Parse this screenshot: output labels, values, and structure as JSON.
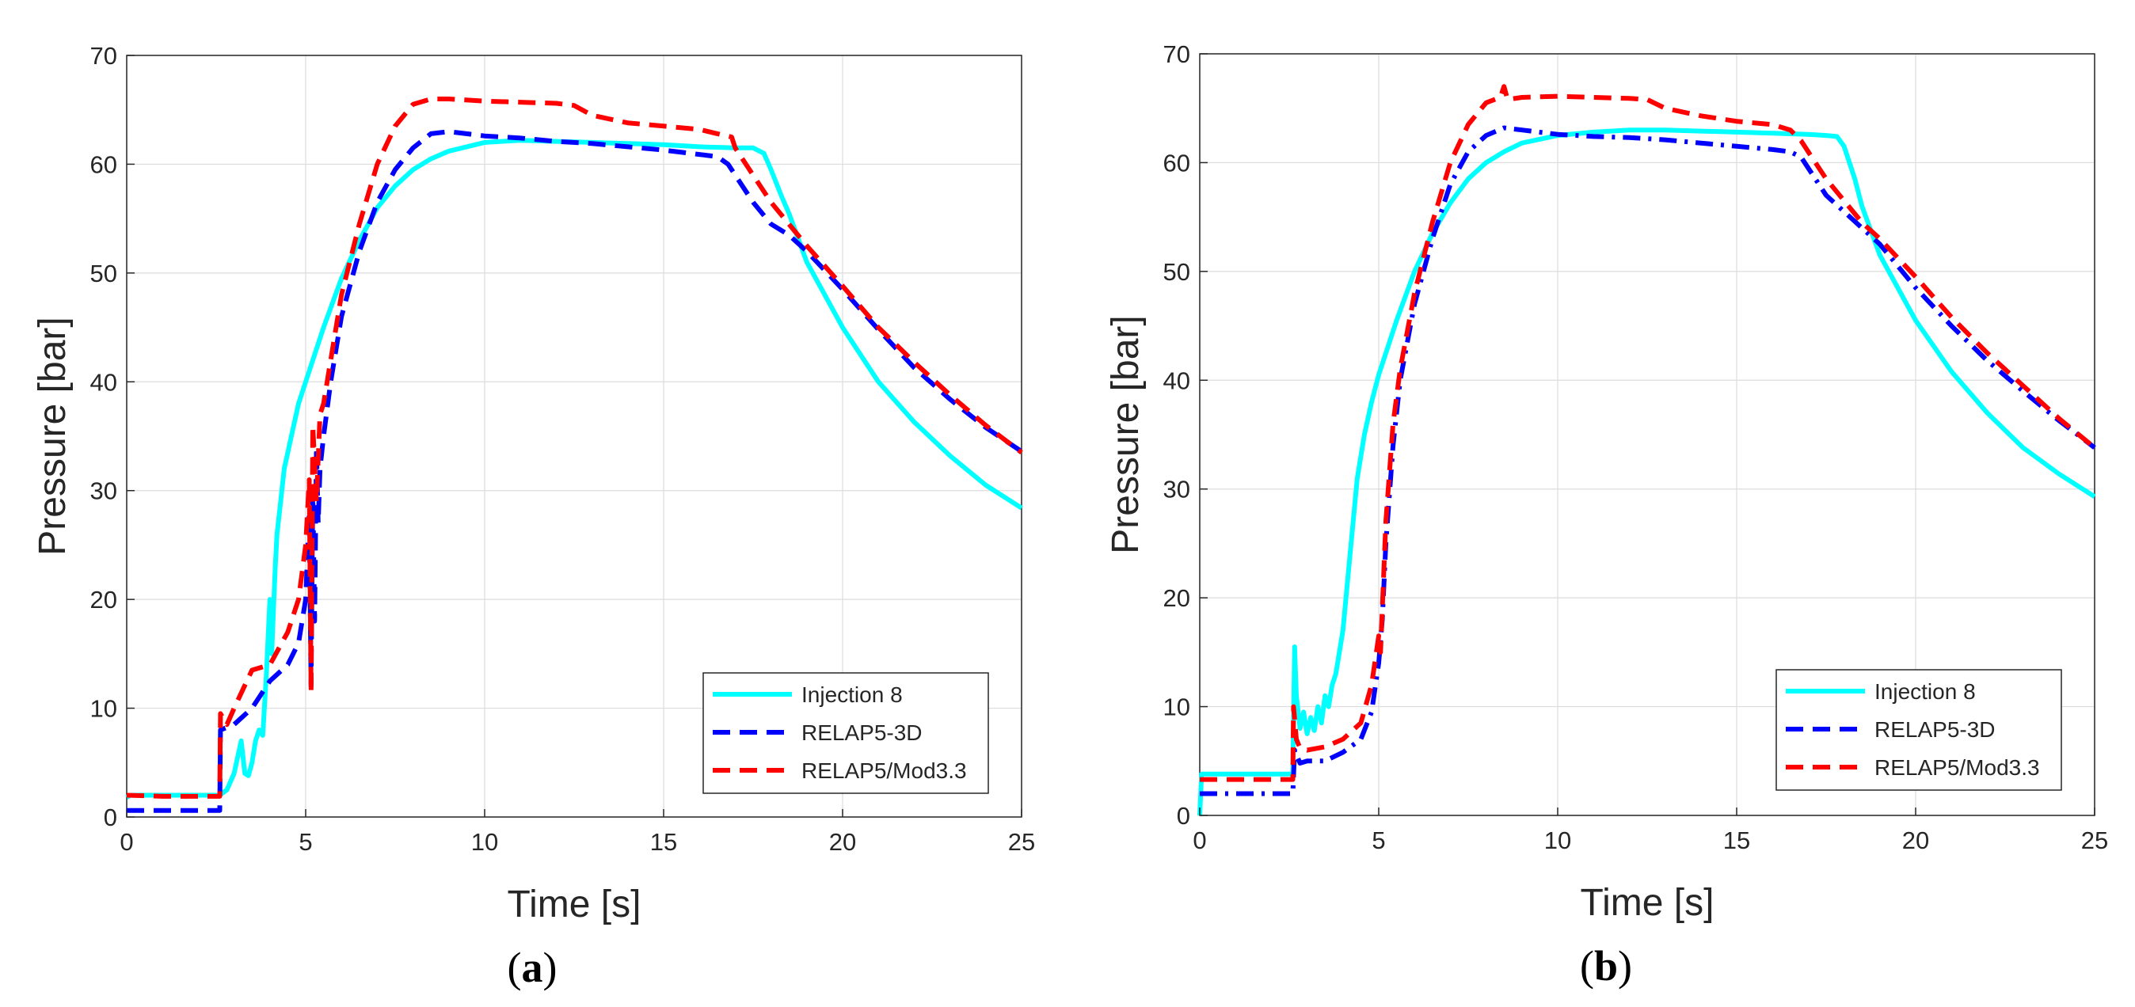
{
  "colors": {
    "injection": "#00FFFF",
    "relap5_3d": "#0000FF",
    "relap5_mod33": "#FF0000",
    "grid": "#dcdcdc",
    "axis": "#262626"
  },
  "chart_data": [
    {
      "type": "line",
      "caption": "(a)",
      "caption_open": "(",
      "caption_letter": "a",
      "caption_close": ")",
      "xlabel": "Time [s]",
      "ylabel": "Pressure [bar]",
      "xlim": [
        0,
        25
      ],
      "ylim": [
        0,
        70
      ],
      "xticks": [
        0,
        5,
        10,
        15,
        20,
        25
      ],
      "yticks": [
        0,
        10,
        20,
        30,
        40,
        50,
        60,
        70
      ],
      "grid": true,
      "legend_position": "bottom-right",
      "series": [
        {
          "name": "Injection 8",
          "style": "solid",
          "x": [
            0,
            0.1,
            0.5,
            1,
            2,
            2.6,
            2.8,
            3.0,
            3.2,
            3.3,
            3.4,
            3.5,
            3.6,
            3.7,
            3.8,
            3.9,
            4.0,
            4.05,
            4.1,
            4.15,
            4.2,
            4.3,
            4.4,
            4.6,
            4.8,
            5.0,
            5.5,
            6.0,
            6.5,
            7.0,
            7.5,
            8.0,
            8.5,
            9.0,
            10.0,
            11.0,
            12.0,
            13.0,
            14.0,
            15.0,
            16.0,
            17.0,
            17.5,
            17.8,
            18.0,
            18.3,
            18.5,
            19.0,
            19.5,
            20.0,
            21.0,
            22.0,
            23.0,
            24.0,
            25.0
          ],
          "y": [
            1.8,
            2.0,
            2.0,
            2.0,
            2.0,
            2.0,
            2.5,
            4.0,
            7.0,
            4.0,
            3.8,
            5.0,
            7.0,
            8.0,
            7.5,
            13.0,
            20.0,
            15.0,
            19.0,
            23.0,
            26.0,
            29.0,
            32.0,
            35.0,
            38.0,
            40.0,
            45.0,
            49.5,
            53.0,
            56.0,
            58.0,
            59.5,
            60.5,
            61.2,
            62.0,
            62.2,
            62.1,
            62.0,
            61.9,
            61.8,
            61.6,
            61.5,
            61.5,
            61.0,
            59.5,
            57.0,
            55.5,
            51.0,
            48.0,
            45.0,
            40.0,
            36.3,
            33.2,
            30.5,
            28.4
          ]
        },
        {
          "name": "RELAP5-3D",
          "style": "dashed",
          "x": [
            0,
            2.6,
            2.62,
            3.0,
            3.5,
            4.0,
            4.5,
            4.8,
            5.0,
            5.1,
            5.15,
            5.2,
            5.25,
            5.3,
            5.35,
            5.4,
            5.5,
            5.7,
            6.0,
            6.5,
            7.0,
            7.5,
            8.0,
            8.5,
            9.0,
            10.0,
            11.0,
            12.0,
            13.0,
            14.0,
            15.0,
            16.0,
            16.5,
            16.8,
            17.0,
            17.5,
            18.0,
            18.5,
            19.0,
            20.0,
            21.0,
            22.0,
            23.0,
            24.0,
            25.0
          ],
          "y": [
            0.6,
            0.6,
            8.0,
            8.5,
            10.0,
            12.5,
            14.0,
            16.0,
            20.0,
            28.0,
            12.0,
            30.0,
            18.0,
            34.0,
            27.0,
            32.0,
            35.0,
            40.0,
            46.0,
            52.0,
            56.5,
            59.5,
            61.5,
            62.8,
            63.0,
            62.6,
            62.4,
            62.1,
            61.9,
            61.6,
            61.3,
            60.9,
            60.7,
            60.0,
            59.0,
            56.5,
            54.5,
            53.5,
            52.0,
            48.5,
            44.8,
            41.3,
            38.4,
            35.8,
            33.6
          ]
        },
        {
          "name": "RELAP5/Mod3.3",
          "style": "dashed",
          "x": [
            0,
            1.0,
            2.0,
            2.6,
            2.62,
            2.8,
            3.0,
            3.5,
            4.0,
            4.5,
            4.8,
            5.0,
            5.1,
            5.15,
            5.2,
            5.3,
            5.4,
            5.5,
            5.7,
            6.0,
            6.5,
            7.0,
            7.5,
            8.0,
            8.5,
            9.0,
            10.0,
            11.0,
            12.0,
            12.5,
            13.0,
            14.0,
            15.0,
            16.0,
            16.5,
            16.9,
            17.0,
            17.5,
            18.0,
            18.5,
            19.0,
            20.0,
            21.0,
            22.0,
            23.0,
            24.0,
            25.0
          ],
          "y": [
            2.0,
            1.9,
            1.9,
            1.9,
            9.5,
            8.5,
            10.0,
            13.5,
            14.0,
            17.0,
            20.0,
            25.0,
            31.0,
            11.5,
            36.0,
            29.0,
            37.0,
            38.0,
            42.0,
            48.0,
            54.5,
            60.0,
            63.5,
            65.5,
            66.0,
            66.0,
            65.8,
            65.7,
            65.6,
            65.4,
            64.5,
            63.8,
            63.5,
            63.2,
            62.8,
            62.5,
            61.5,
            59.0,
            56.5,
            54.5,
            52.5,
            48.8,
            45.0,
            41.8,
            38.8,
            36.0,
            33.5
          ]
        }
      ]
    },
    {
      "type": "line",
      "caption": "(b)",
      "caption_open": "(",
      "caption_letter": "b",
      "caption_close": ")",
      "xlabel": "Time [s]",
      "ylabel": "Pressure [bar]",
      "xlim": [
        0,
        25
      ],
      "ylim": [
        0,
        70
      ],
      "xticks": [
        0,
        5,
        10,
        15,
        20,
        25
      ],
      "yticks": [
        0,
        10,
        20,
        30,
        40,
        50,
        60,
        70
      ],
      "grid": true,
      "legend_position": "bottom-right",
      "series": [
        {
          "name": "Injection 8",
          "style": "solid",
          "x": [
            0,
            0.05,
            0.1,
            1,
            2,
            2.6,
            2.65,
            2.7,
            2.8,
            2.9,
            3.0,
            3.1,
            3.2,
            3.3,
            3.4,
            3.5,
            3.6,
            3.7,
            3.8,
            3.9,
            4.0,
            4.2,
            4.4,
            4.6,
            4.8,
            5.0,
            5.5,
            6.0,
            6.5,
            7.0,
            7.5,
            8.0,
            8.5,
            9.0,
            10.0,
            11.0,
            12.0,
            13.0,
            14.0,
            15.0,
            16.0,
            17.0,
            17.5,
            17.8,
            18.0,
            18.3,
            18.5,
            19.0,
            20.0,
            21.0,
            22.0,
            23.0,
            24.0,
            25.0
          ],
          "y": [
            0.0,
            3.8,
            3.8,
            3.8,
            3.8,
            3.8,
            15.5,
            11.0,
            8.0,
            9.5,
            7.5,
            9.0,
            7.8,
            10.0,
            8.5,
            11.0,
            10.0,
            12.0,
            13.0,
            15.0,
            17.0,
            24.0,
            31.0,
            35.0,
            38.0,
            40.5,
            45.5,
            50.0,
            53.5,
            56.3,
            58.5,
            60.0,
            61.0,
            61.8,
            62.5,
            62.8,
            63.0,
            63.0,
            62.9,
            62.8,
            62.7,
            62.6,
            62.5,
            62.4,
            61.5,
            58.5,
            56.0,
            51.5,
            45.5,
            40.8,
            37.0,
            33.8,
            31.4,
            29.3
          ]
        },
        {
          "name": "RELAP5-3D",
          "style": "dashdot",
          "x": [
            0,
            2.6,
            2.65,
            2.8,
            3.0,
            3.5,
            4.0,
            4.5,
            4.8,
            5.0,
            5.1,
            5.2,
            5.4,
            5.6,
            6.0,
            6.5,
            7.0,
            7.5,
            8.0,
            8.5,
            9.0,
            10.0,
            11.0,
            12.0,
            13.0,
            14.0,
            15.0,
            16.0,
            16.5,
            16.8,
            17.0,
            17.5,
            18.0,
            18.5,
            19.0,
            20.0,
            21.0,
            22.0,
            23.0,
            24.0,
            25.0
          ],
          "y": [
            2.0,
            2.0,
            6.0,
            4.8,
            5.0,
            5.0,
            5.8,
            7.0,
            9.5,
            14.0,
            18.0,
            25.0,
            34.0,
            40.0,
            47.0,
            53.0,
            58.0,
            61.0,
            62.5,
            63.2,
            63.0,
            62.6,
            62.4,
            62.3,
            62.1,
            61.8,
            61.5,
            61.2,
            61.0,
            60.5,
            59.5,
            57.0,
            55.5,
            54.0,
            52.5,
            48.5,
            45.0,
            41.8,
            39.0,
            36.3,
            33.8
          ]
        },
        {
          "name": "RELAP5/Mod3.3",
          "style": "dashed",
          "x": [
            0,
            2.6,
            2.62,
            2.7,
            2.8,
            3.0,
            3.5,
            4.0,
            4.5,
            4.8,
            5.0,
            5.05,
            5.1,
            5.2,
            5.4,
            5.6,
            6.0,
            6.5,
            7.0,
            7.5,
            8.0,
            8.4,
            8.5,
            8.6,
            9.0,
            10.0,
            11.0,
            12.0,
            12.5,
            13.0,
            14.0,
            15.0,
            16.0,
            16.5,
            16.8,
            17.0,
            17.5,
            18.0,
            18.5,
            19.0,
            20.0,
            21.0,
            22.0,
            23.0,
            24.0,
            25.0
          ],
          "y": [
            3.3,
            3.3,
            10.0,
            7.0,
            6.2,
            6.0,
            6.3,
            7.0,
            8.5,
            12.0,
            16.5,
            15.0,
            19.0,
            27.0,
            36.0,
            41.0,
            48.0,
            54.5,
            60.0,
            63.5,
            65.5,
            66.0,
            67.0,
            65.8,
            66.0,
            66.1,
            66.0,
            65.9,
            65.8,
            65.0,
            64.3,
            63.8,
            63.5,
            63.0,
            62.0,
            61.0,
            58.5,
            56.5,
            54.5,
            53.0,
            49.5,
            45.8,
            42.5,
            39.5,
            36.5,
            33.8
          ]
        }
      ]
    }
  ]
}
